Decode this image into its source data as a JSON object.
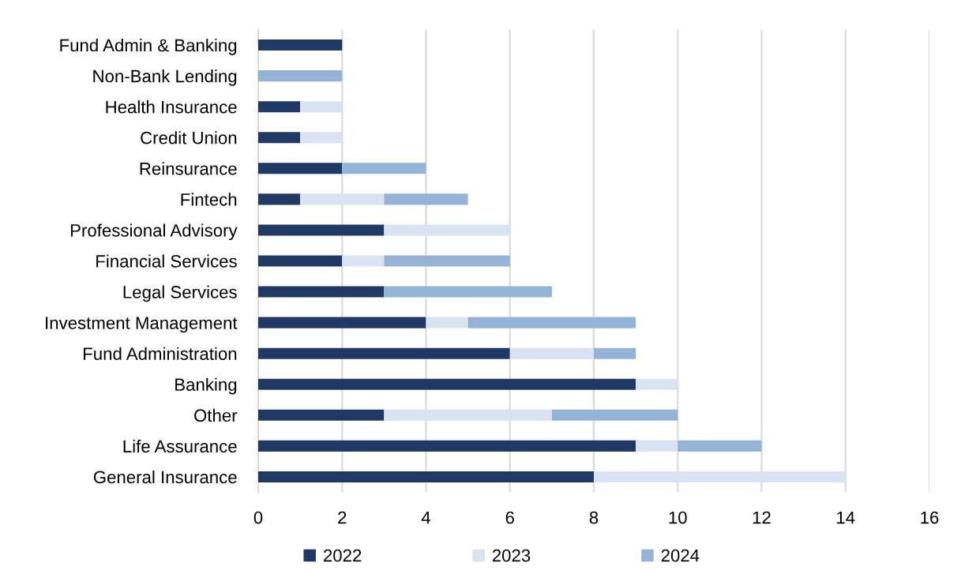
{
  "chart_data": {
    "type": "bar",
    "orientation": "horizontal",
    "stacked": true,
    "categories": [
      "Fund Admin & Banking",
      "Non-Bank Lending",
      "Health Insurance",
      "Credit Union",
      "Reinsurance",
      "Fintech",
      "Professional Advisory",
      "Financial Services",
      "Legal Services",
      "Investment Management",
      "Fund Administration",
      "Banking",
      "Other",
      "Life Assurance",
      "General Insurance"
    ],
    "series": [
      {
        "name": "2022",
        "color": "#203864",
        "values": [
          2,
          null,
          1,
          1,
          2,
          1,
          3,
          2,
          3,
          4,
          6,
          9,
          3,
          9,
          8
        ]
      },
      {
        "name": "2023",
        "color": "#dae3f1",
        "values": [
          null,
          null,
          1,
          1,
          null,
          2,
          3,
          1,
          null,
          1,
          2,
          1,
          4,
          1,
          6
        ]
      },
      {
        "name": "2024",
        "color": "#95b3d7",
        "values": [
          null,
          2,
          null,
          null,
          2,
          2,
          null,
          3,
          4,
          4,
          1,
          null,
          3,
          2,
          null
        ]
      }
    ],
    "xlim": [
      0,
      16
    ],
    "xticks": [
      0,
      2,
      4,
      6,
      8,
      10,
      12,
      14,
      16
    ],
    "grid": "x",
    "legend": "bottom"
  }
}
